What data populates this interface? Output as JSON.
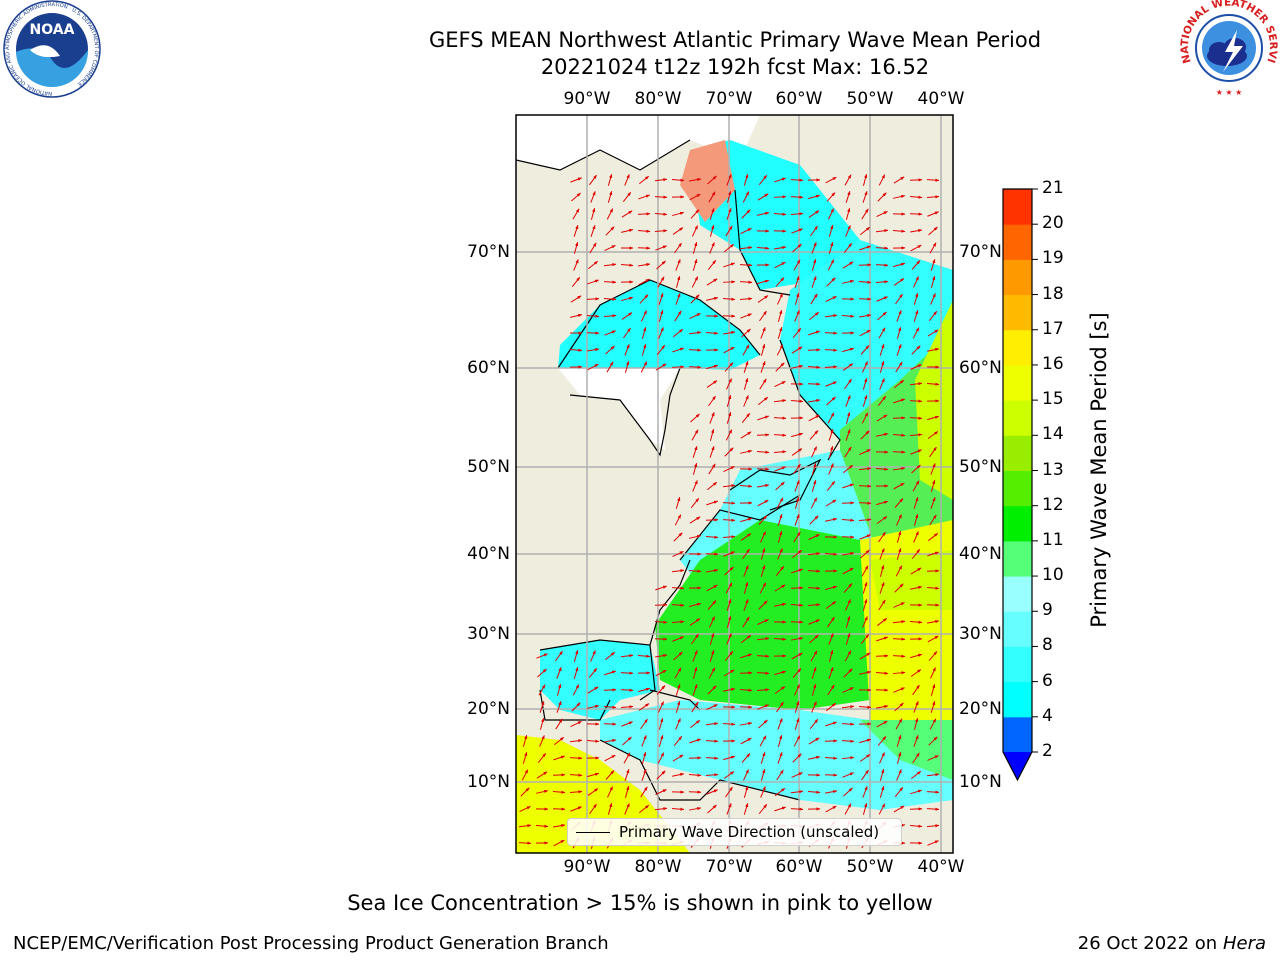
{
  "header": {
    "title_line1": "GEFS MEAN Northwest Atlantic Primary Wave Mean Period",
    "title_line2": "20221024 t12z 192h fcst   Max: 16.52"
  },
  "logos": {
    "noaa_text": "NOAA",
    "noaa_ring_text": "NATIONAL OCEANIC AND ATMOSPHERIC ADMINISTRATION · U.S. DEPARTMENT OF COMMERCE",
    "nws_ring_text": "NATIONAL WEATHER SERVICE"
  },
  "map": {
    "lon_labels": [
      "90°W",
      "80°W",
      "70°W",
      "60°W",
      "50°W",
      "40°W"
    ],
    "lat_labels": [
      "70°N",
      "60°N",
      "50°N",
      "40°N",
      "30°N",
      "20°N",
      "10°N"
    ],
    "legend_label": "Primary Wave Direction (unscaled)",
    "colors": {
      "land": "#efedde",
      "ice_free_white": "#ffffff",
      "arrow": "#e00000",
      "coast": "#000000",
      "grid": "#b0b0b0"
    }
  },
  "colorbar": {
    "label": "Primary Wave Mean Period [s]",
    "ticks": [
      "2",
      "4",
      "6",
      "8",
      "9",
      "10",
      "11",
      "12",
      "13",
      "14",
      "15",
      "16",
      "17",
      "18",
      "19",
      "20",
      "21"
    ],
    "colors": [
      "#0066ff",
      "#00ffff",
      "#33ffff",
      "#66ffff",
      "#99ffff",
      "#55ff77",
      "#00ee00",
      "#55ee00",
      "#99ee00",
      "#ccff00",
      "#eeff00",
      "#ffee00",
      "#ffbb00",
      "#ff9900",
      "#ff6600",
      "#ff3300",
      "#ff0000"
    ],
    "under_color": "#0000ff"
  },
  "caption": "Sea Ice Concentration > 15% is shown in pink to yellow",
  "footer": {
    "left": "NCEP/EMC/Verification Post Processing Product Generation Branch",
    "right_date": "26 Oct 2022 on ",
    "right_host": "Hera"
  }
}
